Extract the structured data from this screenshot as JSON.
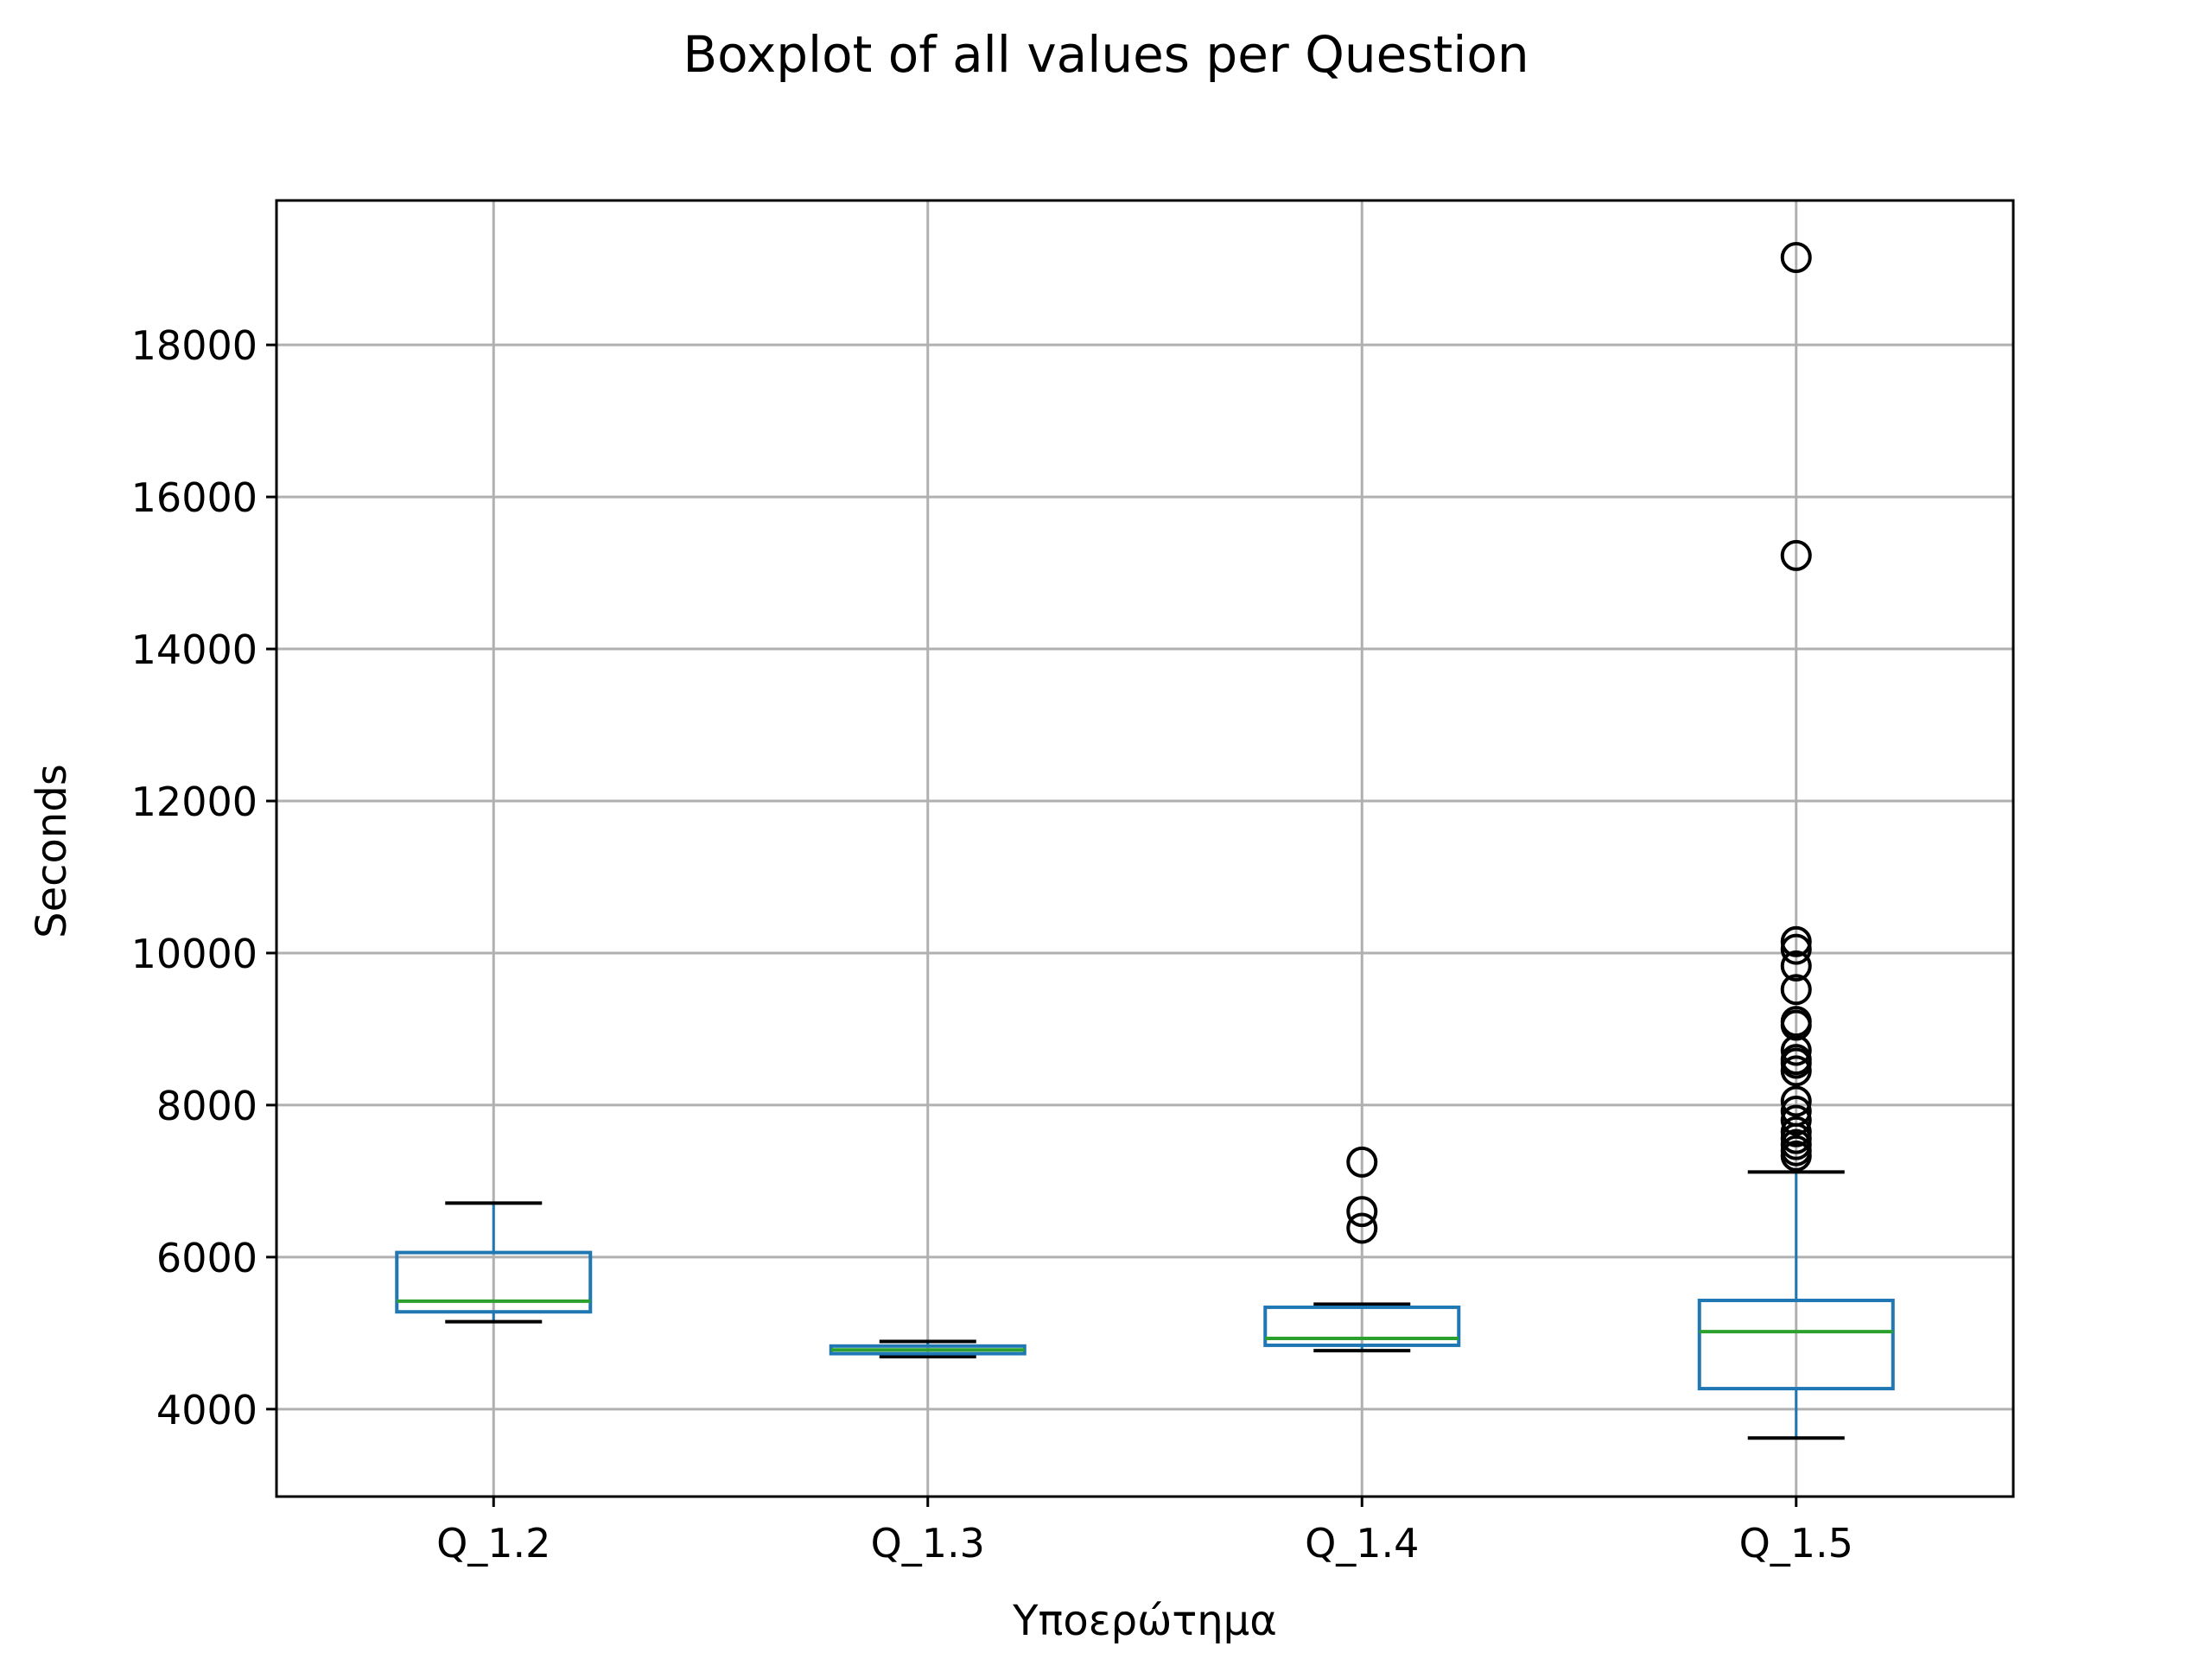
{
  "chart_data": {
    "type": "boxplot",
    "title": "Boxplot of all values per Question",
    "xlabel": "Υποερώτημα",
    "ylabel": "Seconds",
    "ylim": [
      2850,
      19900
    ],
    "yticks": [
      4000,
      6000,
      8000,
      10000,
      12000,
      14000,
      16000,
      18000
    ],
    "grid": true,
    "categories": [
      "Q_1.2",
      "Q_1.3",
      "Q_1.4",
      "Q_1.5"
    ],
    "boxes": [
      {
        "category": "Q_1.2",
        "whisker_low": 5150,
        "q1": 5280,
        "median": 5420,
        "q3": 6060,
        "whisker_high": 6710,
        "outliers": []
      },
      {
        "category": "Q_1.3",
        "whisker_low": 4690,
        "q1": 4730,
        "median": 4780,
        "q3": 4830,
        "whisker_high": 4890,
        "outliers": []
      },
      {
        "category": "Q_1.4",
        "whisker_low": 4770,
        "q1": 4840,
        "median": 4930,
        "q3": 5340,
        "whisker_high": 5380,
        "outliers": [
          6380,
          6600,
          7250
        ]
      },
      {
        "category": "Q_1.5",
        "whisker_low": 3620,
        "q1": 4270,
        "median": 5020,
        "q3": 5430,
        "whisker_high": 7120,
        "outliers": [
          7330,
          7400,
          7480,
          7560,
          7650,
          7800,
          7920,
          8050,
          8450,
          8550,
          8600,
          8720,
          9050,
          9100,
          9520,
          9830,
          10050,
          10150,
          15230,
          19150
        ]
      }
    ],
    "colors": {
      "box": "#1f77b4",
      "median": "#2ca02c",
      "whisker": "#1f77b4",
      "cap": "#000000",
      "outlier": "#000000",
      "grid": "#b0b0b0"
    }
  }
}
